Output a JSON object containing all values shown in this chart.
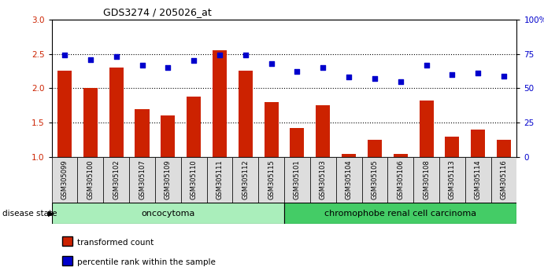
{
  "title": "GDS3274 / 205026_at",
  "samples": [
    "GSM305099",
    "GSM305100",
    "GSM305102",
    "GSM305107",
    "GSM305109",
    "GSM305110",
    "GSM305111",
    "GSM305112",
    "GSM305115",
    "GSM305101",
    "GSM305103",
    "GSM305104",
    "GSM305105",
    "GSM305106",
    "GSM305108",
    "GSM305113",
    "GSM305114",
    "GSM305116"
  ],
  "transformed_count": [
    2.25,
    2.0,
    2.3,
    1.7,
    1.6,
    1.88,
    2.55,
    2.25,
    1.8,
    1.42,
    1.75,
    1.05,
    1.25,
    1.05,
    1.82,
    1.3,
    1.4,
    1.25
  ],
  "percentile_rank": [
    74,
    71,
    73,
    67,
    65,
    70,
    74,
    74,
    68,
    62,
    65,
    58,
    57,
    55,
    67,
    60,
    61,
    59
  ],
  "oncocytoma_count": 9,
  "chromophobe_count": 9,
  "ylim_left": [
    1,
    3
  ],
  "ylim_right": [
    0,
    100
  ],
  "yticks_left": [
    1.0,
    1.5,
    2.0,
    2.5,
    3.0
  ],
  "yticks_right": [
    0,
    25,
    50,
    75,
    100
  ],
  "bar_color": "#cc2200",
  "dot_color": "#0000cc",
  "oncocytoma_color": "#aaeebb",
  "chromophobe_color": "#44cc66",
  "tick_bg_color": "#dddddd",
  "label_transformed": "transformed count",
  "label_percentile": "percentile rank within the sample",
  "disease_state_label": "disease state",
  "oncocytoma_label": "oncocytoma",
  "chromophobe_label": "chromophobe renal cell carcinoma",
  "hgrid_vals": [
    1.5,
    2.0,
    2.5
  ]
}
